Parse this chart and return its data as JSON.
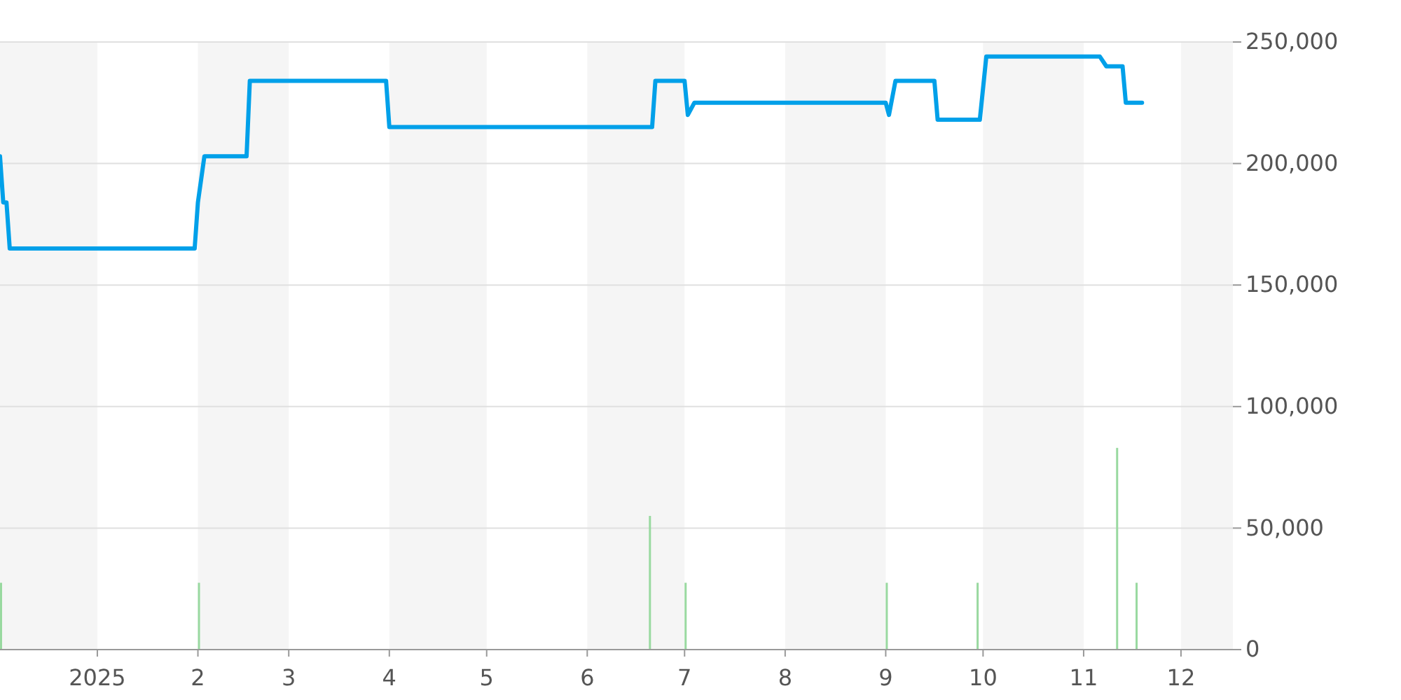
{
  "chart_data": {
    "type": "line",
    "xlim": [
      "2024-12-02",
      "2025-12-17"
    ],
    "xticks": [
      {
        "value": "2025-01-01",
        "label": "2025"
      },
      {
        "value": "2025-02-01",
        "label": "2"
      },
      {
        "value": "2025-03-01",
        "label": "3"
      },
      {
        "value": "2025-04-01",
        "label": "4"
      },
      {
        "value": "2025-05-01",
        "label": "5"
      },
      {
        "value": "2025-06-01",
        "label": "6"
      },
      {
        "value": "2025-07-01",
        "label": "7"
      },
      {
        "value": "2025-08-01",
        "label": "8"
      },
      {
        "value": "2025-09-01",
        "label": "9"
      },
      {
        "value": "2025-10-01",
        "label": "10"
      },
      {
        "value": "2025-11-01",
        "label": "11"
      },
      {
        "value": "2025-12-01",
        "label": "12"
      }
    ],
    "ylim": [
      0,
      250000
    ],
    "yticks": [
      {
        "value": 0,
        "label": "0"
      },
      {
        "value": 50000,
        "label": "50,000"
      },
      {
        "value": 100000,
        "label": "100,000"
      },
      {
        "value": 150000,
        "label": "150,000"
      },
      {
        "value": 200000,
        "label": "200,000"
      },
      {
        "value": 250000,
        "label": "250,000"
      }
    ],
    "grid": "y",
    "bands": [
      {
        "axis": "x",
        "from": "2024-12-02",
        "to": "2025-01-01",
        "color": "#f5f5f5"
      },
      {
        "axis": "x",
        "from": "2025-02-01",
        "to": "2025-03-01",
        "color": "#f5f5f5"
      },
      {
        "axis": "x",
        "from": "2025-04-01",
        "to": "2025-05-01",
        "color": "#f5f5f5"
      },
      {
        "axis": "x",
        "from": "2025-06-01",
        "to": "2025-07-01",
        "color": "#f5f5f5"
      },
      {
        "axis": "x",
        "from": "2025-08-01",
        "to": "2025-09-01",
        "color": "#f5f5f5"
      },
      {
        "axis": "x",
        "from": "2025-10-01",
        "to": "2025-11-01",
        "color": "#f5f5f5"
      },
      {
        "axis": "x",
        "from": "2025-12-01",
        "to": "2025-12-17",
        "color": "#f5f5f5"
      }
    ],
    "series": [
      {
        "type": "bar",
        "color": "#99d9a0",
        "x": [
          "2024-12-02",
          "2025-02-01",
          "2025-06-20",
          "2025-07-01",
          "2025-09-01",
          "2025-09-29",
          "2025-11-11",
          "2025-11-17"
        ],
        "values": [
          27500,
          27500,
          55000,
          27500,
          27500,
          27500,
          83000,
          27500
        ]
      },
      {
        "color": "#00a0e9",
        "x": [
          "2024-12-02",
          "2024-12-03",
          "2024-12-04",
          "2024-12-05",
          "2025-01-31",
          "2025-02-01",
          "2025-02-03",
          "2025-02-16",
          "2025-02-17",
          "2025-03-31",
          "2025-04-01",
          "2025-06-21",
          "2025-06-22",
          "2025-07-01",
          "2025-07-02",
          "2025-07-04",
          "2025-09-01",
          "2025-09-02",
          "2025-09-04",
          "2025-09-16",
          "2025-09-17",
          "2025-09-30",
          "2025-10-02",
          "2025-11-06",
          "2025-11-08",
          "2025-11-13",
          "2025-11-14",
          "2025-11-19"
        ],
        "values": [
          203000,
          184000,
          184000,
          165000,
          165000,
          184000,
          203000,
          203000,
          234000,
          234000,
          215000,
          215000,
          234000,
          234000,
          220000,
          225000,
          225000,
          220000,
          234000,
          234000,
          218000,
          218000,
          244000,
          244000,
          240000,
          240000,
          225000,
          225000
        ]
      }
    ]
  }
}
